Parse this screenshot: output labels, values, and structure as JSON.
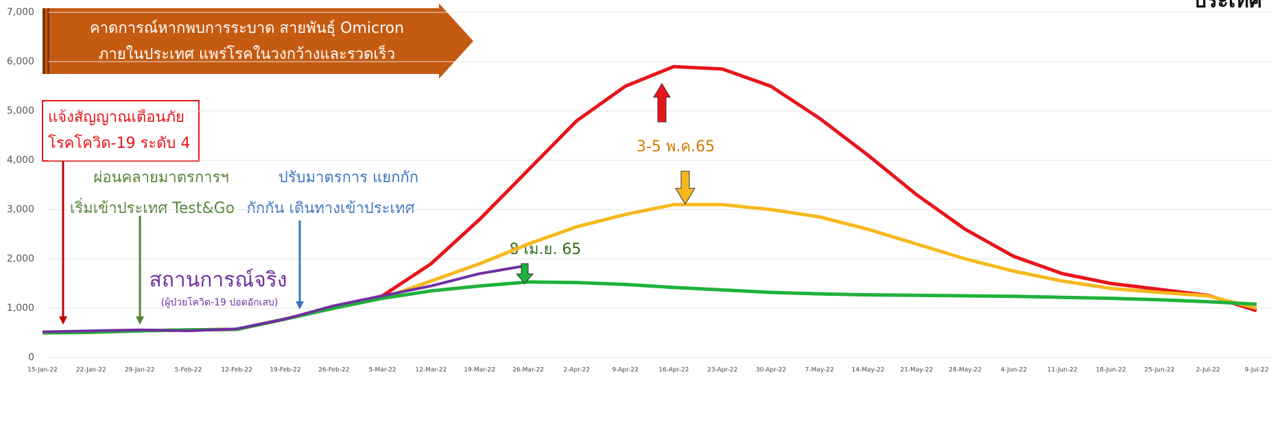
{
  "chart_data": {
    "type": "line",
    "categories": [
      "15-Jan-22",
      "22-Jan-22",
      "29-Jan-22",
      "5-Feb-22",
      "12-Feb-22",
      "19-Feb-22",
      "26-Feb-22",
      "5-Mar-22",
      "12-Mar-22",
      "19-Mar-22",
      "26-Mar-22",
      "2-Apr-22",
      "9-Apr-22",
      "16-Apr-22",
      "23-Apr-22",
      "30-Apr-22",
      "7-May-22",
      "14-May-22",
      "21-May-22",
      "28-May-22",
      "4-Jun-22",
      "11-Jun-22",
      "18-Jun-22",
      "25-Jun-22",
      "2-Jul-22",
      "9-Jul-22"
    ],
    "series": [
      {
        "color": "#e8141b",
        "values": [
          500,
          510,
          540,
          560,
          570,
          780,
          1000,
          1250,
          1900,
          2800,
          3800,
          4800,
          5500,
          5900,
          5850,
          5500,
          4850,
          4100,
          3300,
          2600,
          2050,
          1700,
          1500,
          1380,
          1260,
          950
        ]
      },
      {
        "color": "#f7b81e",
        "values": [
          500,
          510,
          540,
          560,
          570,
          780,
          1000,
          1200,
          1550,
          1900,
          2300,
          2650,
          2900,
          3100,
          3100,
          3000,
          2850,
          2600,
          2300,
          2000,
          1750,
          1550,
          1400,
          1320,
          1250,
          1000
        ]
      },
      {
        "color": "#1fb23c",
        "values": [
          500,
          510,
          540,
          560,
          570,
          780,
          1000,
          1200,
          1350,
          1450,
          1530,
          1520,
          1480,
          1420,
          1370,
          1320,
          1290,
          1270,
          1260,
          1250,
          1240,
          1220,
          1200,
          1170,
          1130,
          1080
        ]
      },
      {
        "color": "#7030a0",
        "values": [
          520,
          540,
          560,
          540,
          580,
          780,
          1050,
          1250,
          1450,
          1700,
          1870,
          null,
          null,
          null,
          null,
          null,
          null,
          null,
          null,
          null,
          null,
          null,
          null,
          null,
          null,
          null
        ]
      }
    ],
    "ylim": [
      0,
      7000
    ],
    "yticks": [
      0,
      {
        "value": 1000,
        "label": "1,000"
      },
      {
        "value": 2000,
        "label": "2,000"
      },
      {
        "value": 3000,
        "label": "3,000"
      },
      {
        "value": 4000,
        "label": "4,000"
      },
      {
        "value": 5000,
        "label": "5,000"
      },
      {
        "value": 6000,
        "label": "6,000"
      },
      {
        "value": 7000,
        "label": "7,000"
      }
    ],
    "grid": true,
    "annotations": [
      "คาดการณ์หากพบการระบาด สายพันธุ์ Omicron",
      "ภายในประเทศ แพร่โรคในวงกว้างและรวดเร็ว",
      "แจ้งสัญญาณเตือนภัย",
      "โรคโควิด-19 ระดับ 4",
      "ผ่อนคลายมาตรการฯ",
      "เริ่มเข้าประเทศ Test&Go",
      "ปรับมาตรการ แยกกัก",
      "กักกัน เดินทางเข้าประเทศ",
      "สถานการณ์จริง",
      "(ผู้ป่วยโควิด-19 ปอดอักเสบ)",
      "3-5 พ.ค.65",
      "8 เม.ย. 65",
      "ประเทศ"
    ]
  }
}
